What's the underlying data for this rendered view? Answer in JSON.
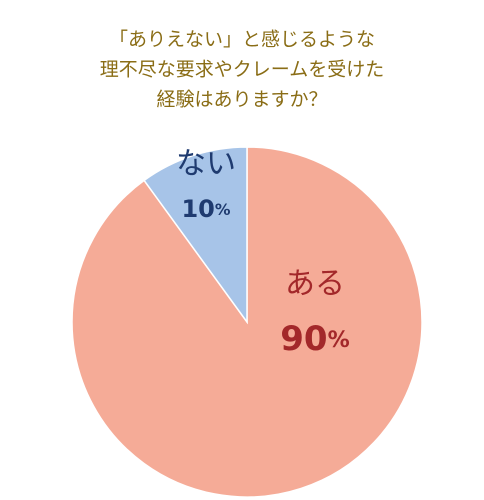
{
  "chart_data": {
    "type": "pie",
    "title": [
      "「ありえない」と感じるような",
      "理不尽な要求やクレームを受けた",
      "経験はありますか？"
    ],
    "categories": [
      "ある",
      "ない"
    ],
    "values": [
      90,
      10
    ],
    "value_labels": [
      "90%",
      "10%"
    ],
    "colors": [
      "#f5ab97",
      "#a7c4e8"
    ],
    "label_colors": [
      "#a3282a",
      "#1f3b70"
    ]
  }
}
